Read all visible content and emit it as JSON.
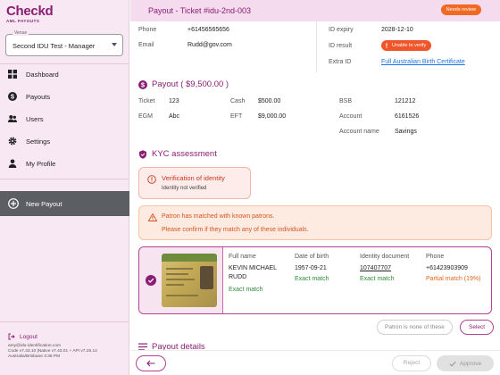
{
  "brand": {
    "name": "Checkd",
    "sub": "AML PAYOUTS",
    "color": "#8a1e73"
  },
  "venue": {
    "label": "Venue",
    "value": "Second IDU Test - Manager"
  },
  "nav": [
    {
      "label": "Dashboard",
      "icon": "dashboard-icon"
    },
    {
      "label": "Payouts",
      "icon": "dollar-icon"
    },
    {
      "label": "Users",
      "icon": "users-icon"
    },
    {
      "label": "Settings",
      "icon": "gear-icon"
    },
    {
      "label": "My Profile",
      "icon": "person-icon"
    }
  ],
  "new_payout": {
    "label": "New Payout",
    "icon": "plus-circle-icon"
  },
  "logout": {
    "label": "Logout",
    "email": "amy@idu-identification.com",
    "version": "Code v7.43.10 |Native v7.43.01 + API v7.25.14",
    "timezone": "Australia/Brisbane 3:36 PM"
  },
  "header": {
    "title": "Payout - Ticket #idu-2nd-003",
    "status": "Needs review"
  },
  "contact": {
    "phone_label": "Phone",
    "phone": "+61456565656",
    "email_label": "Email",
    "email": "Rudd@gov.com"
  },
  "id_info": {
    "expiry_label": "ID expiry",
    "expiry": "2028-12-10",
    "result_label": "ID result",
    "result": "Unable to verify",
    "type_label": "Extra ID",
    "type": "Full Australian Birth Certificate"
  },
  "payout": {
    "title": "Payout ( $9,500.00 )",
    "ticket_label": "Ticket",
    "ticket": "123",
    "egm_label": "EGM",
    "egm": "Abc",
    "cash_label": "Cash",
    "cash": "$500.00",
    "eft_label": "EFT",
    "eft": "$9,000.00",
    "bsb_label": "BSB",
    "bsb": "121212",
    "account_label": "Account",
    "account": "6161526",
    "account_name_label": "Account name",
    "account_name": "Savings"
  },
  "kyc": {
    "title": "KYC assessment",
    "verif_title": "Verification of identity",
    "verif_sub": "Identity not verified",
    "warn_line1": "Patron has matched with known patrons.",
    "warn_line2": "Please confirm if they match any of these individuals."
  },
  "match": {
    "full_name_label": "Full name",
    "full_name": "KEVIN MICHAEL RUDD",
    "full_name_status": "Exact match",
    "dob_label": "Date of birth",
    "dob": "1957-09-21",
    "dob_status": "Exact match",
    "doc_label": "Identity document",
    "doc": "107407707",
    "doc_status": "Exact match",
    "phone_label": "Phone",
    "phone": "+61423903909",
    "phone_status": "Partial match (19%)"
  },
  "actions": {
    "none_label": "Patron is none of these",
    "select_label": "Select"
  },
  "payout_details": {
    "title": "Payout details"
  },
  "footer": {
    "reject_label": "Reject",
    "approve_label": "Approve"
  }
}
